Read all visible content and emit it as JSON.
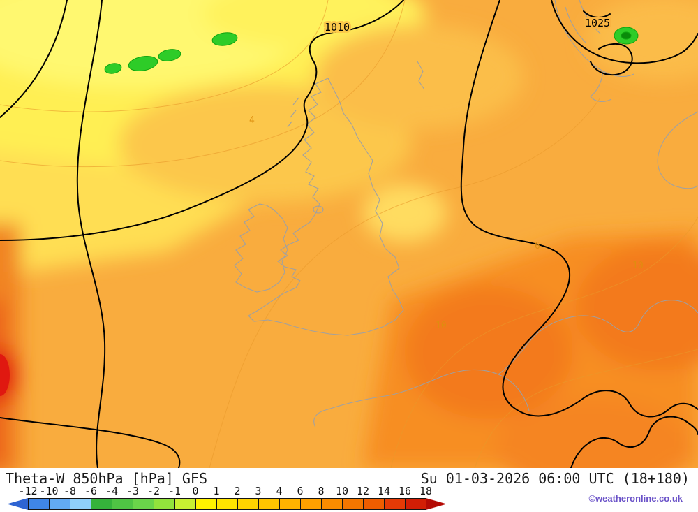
{
  "map": {
    "isobar_labels": [
      {
        "text": "1010"
      },
      {
        "text": "1025"
      }
    ],
    "value_labels": [
      {
        "text": "4"
      },
      {
        "text": "6"
      },
      {
        "text": "10"
      },
      {
        "text": "10"
      }
    ]
  },
  "footer": {
    "title": "Theta-W 850hPa [hPa] GFS",
    "timestamp": "Su 01-03-2026 06:00 UTC (18+180)",
    "copyright": "©weatheronline.co.uk"
  },
  "colorbar": {
    "tick_labels": [
      "-12",
      "-10",
      "-8",
      "-6",
      "-4",
      "-3",
      "-2",
      "-1",
      "0",
      "1",
      "2",
      "3",
      "4",
      "6",
      "8",
      "10",
      "12",
      "14",
      "16",
      "18"
    ],
    "segment_colors": [
      "#2E64D2",
      "#3F86E8",
      "#62AAF2",
      "#8FD0FA",
      "#35B33B",
      "#4FC444",
      "#6AD54A",
      "#92E33C",
      "#C8F032",
      "#FFF200",
      "#FFE400",
      "#FFD400",
      "#FFC400",
      "#FFB300",
      "#FFA000",
      "#FB8C00",
      "#F57600",
      "#EF5D00",
      "#E53A06",
      "#D21E05",
      "#B40A04"
    ]
  }
}
